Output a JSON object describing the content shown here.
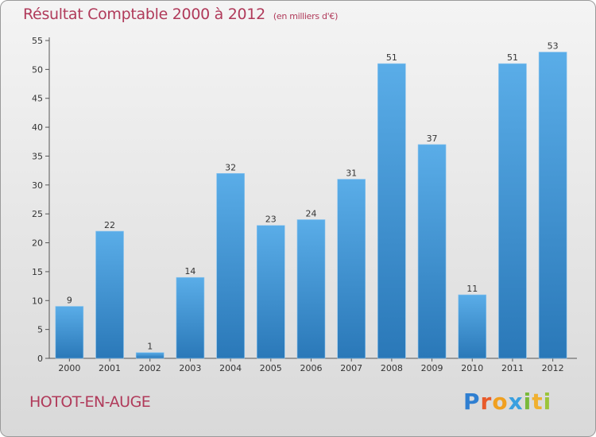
{
  "chart_data": {
    "type": "bar",
    "title": "Résultat Comptable 2000 à 2012",
    "unit_label": "(en milliers d'€)",
    "categories": [
      "2000",
      "2001",
      "2002",
      "2003",
      "2004",
      "2005",
      "2006",
      "2007",
      "2008",
      "2009",
      "2010",
      "2011",
      "2012"
    ],
    "values": [
      9,
      22,
      1,
      14,
      32,
      23,
      24,
      31,
      51,
      37,
      11,
      51,
      53
    ],
    "ylim": [
      0,
      55
    ],
    "yticks": [
      0,
      5,
      10,
      15,
      20,
      25,
      30,
      35,
      40,
      45,
      50,
      55
    ],
    "xlabel": "",
    "ylabel": "",
    "grid": false,
    "bar_color_top": "#5aade8",
    "bar_color_bottom": "#2a78b8"
  },
  "commune": "HOTOT-EN-AUGE",
  "logo": {
    "p": "P",
    "r": "r",
    "o": "o",
    "x": "x",
    "i1": "i",
    "t": "t",
    "i2": "i"
  }
}
